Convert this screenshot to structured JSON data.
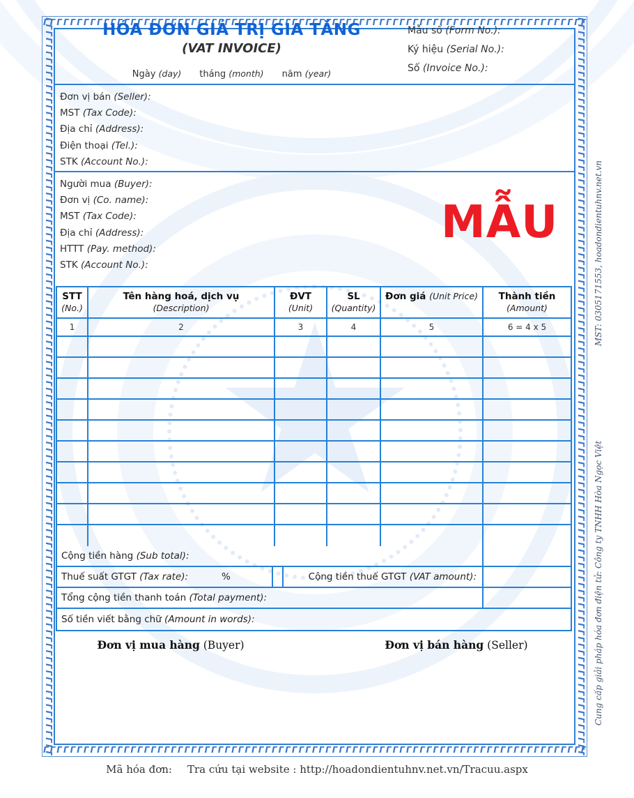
{
  "page": {
    "accent_blue": "#2581d6",
    "title_blue": "#1163d6",
    "stamp_red": "#ec1c24"
  },
  "decor": {
    "border_glyph": "Γ"
  },
  "header": {
    "title": "HÓA ĐƠN GIÁ TRỊ GIA TĂNG",
    "subtitle": "(VAT INVOICE)",
    "date_parts": [
      {
        "vi": "Ngày",
        "en": "(day)"
      },
      {
        "vi": "tháng",
        "en": "(month)"
      },
      {
        "vi": "năm",
        "en": "(year)"
      }
    ],
    "meta": [
      {
        "vi": "Mẫu số",
        "en": "(Form No.):",
        "value": ""
      },
      {
        "vi": "Ký hiệu",
        "en": "(Serial No.):",
        "value": ""
      },
      {
        "vi": "Số",
        "en": "(Invoice No.):",
        "value": ""
      }
    ]
  },
  "seller": {
    "rows": [
      {
        "vi": "Đơn vị bán",
        "en": "(Seller):",
        "value": ""
      },
      {
        "vi": "MST",
        "en": "(Tax Code):",
        "value": ""
      },
      {
        "vi": "Địa chỉ",
        "en": "(Address):",
        "value": ""
      },
      {
        "vi": "Điện thoại",
        "en": "(Tel.):",
        "value": ""
      },
      {
        "vi": "STK",
        "en": "(Account No.):",
        "value": ""
      }
    ]
  },
  "buyer": {
    "rows": [
      {
        "vi": "Người mua",
        "en": "(Buyer):",
        "value": ""
      },
      {
        "vi": "Đơn vị",
        "en": "(Co. name):",
        "value": ""
      },
      {
        "vi": "MST",
        "en": "(Tax Code):",
        "value": ""
      },
      {
        "vi": "Địa chỉ",
        "en": "(Address):",
        "value": ""
      },
      {
        "vi": "HTTT",
        "en": "(Pay. method):",
        "value": ""
      },
      {
        "vi": "STK",
        "en": "(Account No.):",
        "value": ""
      }
    ]
  },
  "watermark_text": "MẪU",
  "items_table": {
    "columns": [
      {
        "vi": "STT",
        "en": "(No.)",
        "col_no": "1"
      },
      {
        "vi": "Tên hàng hoá, dịch vụ",
        "en": "(Description)",
        "col_no": "2"
      },
      {
        "vi": "ĐVT",
        "en": "(Unit)",
        "col_no": "3"
      },
      {
        "vi": "SL",
        "en": "(Quantity)",
        "col_no": "4"
      },
      {
        "vi": "Đơn giá",
        "en": "(Unit Price)",
        "col_no": "5"
      },
      {
        "vi": "Thành tiền",
        "en": "(Amount)",
        "col_no": "6 = 4 x 5"
      }
    ],
    "empty_row_count": 10,
    "summary": {
      "subtotal": {
        "vi": "Cộng tiền hàng",
        "en": "(Sub total):",
        "value": ""
      },
      "tax_rate": {
        "vi": "Thuế suất GTGT",
        "en": "(Tax rate):",
        "percent": "%",
        "value": ""
      },
      "vat_amount": {
        "vi": "Cộng tiền thuế GTGT",
        "en": "(VAT amount):",
        "value": ""
      },
      "total": {
        "vi": "Tổng cộng tiền thanh toán",
        "en": "(Total payment):",
        "value": ""
      },
      "in_words": {
        "vi": "Số tiền viết bằng chữ",
        "en": "(Amount in words):",
        "value": ""
      }
    }
  },
  "signatures": {
    "buyer": {
      "vi": "Đơn vị mua hàng",
      "en": "(Buyer)"
    },
    "seller": {
      "vi": "Đơn vị bán hàng",
      "en": "(Seller)"
    }
  },
  "side_note": {
    "provider": "Cung cấp giải pháp hóa đơn điện tử: Công ty TNHH Hòa Ngọc Việt",
    "tax_contact": "MST: 0305171553, hoadondientuhnv.net.vn"
  },
  "footer": {
    "code_label": "Mã hóa đơn:",
    "lookup": "Tra cứu tại website : http://hoadondientuhnv.net.vn/Tracuu.aspx"
  }
}
